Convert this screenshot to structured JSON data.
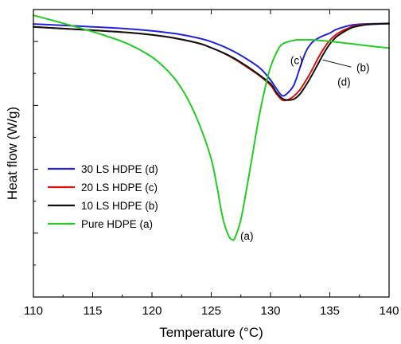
{
  "chart_data": {
    "type": "line",
    "xlabel": "Temperature (°C)",
    "ylabel": "Heat flow (W/g)",
    "xlim": [
      110,
      140
    ],
    "x_ticks": [
      "110",
      "115",
      "120",
      "125",
      "130",
      "135",
      "140"
    ],
    "x_tick_values": [
      110,
      115,
      120,
      125,
      130,
      135,
      140
    ],
    "ylim": [
      0,
      1
    ],
    "y_tick_labels_shown": false,
    "grid": false,
    "legend_position": "lower-left",
    "series": [
      {
        "name": "30 LS HDPE (d)",
        "color": "#2222dd",
        "x": [
          110,
          112,
          115,
          118,
          120,
          122,
          124,
          125,
          126,
          127,
          128,
          129,
          129.5,
          130,
          130.5,
          131,
          131.5,
          132,
          132.5,
          133,
          133.5,
          134,
          134.5,
          135,
          135.5,
          136,
          136.5,
          137,
          138,
          139,
          140
        ],
        "y": [
          0.95,
          0.946,
          0.94,
          0.933,
          0.926,
          0.916,
          0.9,
          0.888,
          0.872,
          0.852,
          0.828,
          0.8,
          0.78,
          0.755,
          0.725,
          0.7,
          0.712,
          0.74,
          0.8,
          0.855,
          0.885,
          0.9,
          0.91,
          0.918,
          0.93,
          0.937,
          0.943,
          0.947,
          0.95,
          0.951,
          0.952
        ]
      },
      {
        "name": "20 LS HDPE (c)",
        "color": "#dd1111",
        "x": [
          110,
          112,
          115,
          118,
          120,
          122,
          124,
          125,
          126,
          127,
          128,
          129,
          130,
          130.5,
          131,
          131.5,
          132,
          132.5,
          133,
          133.5,
          134,
          134.5,
          135,
          135.5,
          136,
          136.5,
          137,
          138,
          139,
          140
        ],
        "y": [
          0.94,
          0.935,
          0.928,
          0.92,
          0.912,
          0.9,
          0.882,
          0.867,
          0.849,
          0.827,
          0.8,
          0.772,
          0.737,
          0.707,
          0.685,
          0.687,
          0.7,
          0.722,
          0.754,
          0.79,
          0.83,
          0.865,
          0.893,
          0.912,
          0.925,
          0.934,
          0.942,
          0.948,
          0.95,
          0.951
        ]
      },
      {
        "name": "10 LS HDPE (b)",
        "color": "#111111",
        "x": [
          110,
          112,
          115,
          118,
          120,
          122,
          124,
          125,
          126,
          127,
          128,
          129,
          130,
          130.5,
          131,
          131.5,
          132,
          132.5,
          133,
          133.5,
          134,
          134.5,
          135,
          135.5,
          136,
          136.5,
          137,
          138,
          139,
          140
        ],
        "y": [
          0.94,
          0.935,
          0.928,
          0.92,
          0.912,
          0.9,
          0.882,
          0.867,
          0.85,
          0.829,
          0.803,
          0.774,
          0.742,
          0.712,
          0.69,
          0.685,
          0.689,
          0.707,
          0.737,
          0.772,
          0.81,
          0.848,
          0.88,
          0.903,
          0.918,
          0.93,
          0.939,
          0.947,
          0.95,
          0.951
        ]
      },
      {
        "name": "Pure HDPE (a)",
        "color": "#22cc22",
        "x": [
          110,
          112,
          114,
          116,
          118,
          120,
          121,
          122,
          123,
          124,
          125,
          125.5,
          126,
          126.5,
          126.8,
          127,
          127.5,
          128,
          128.5,
          129,
          129.5,
          130,
          130.5,
          131,
          132,
          133,
          134,
          136,
          138,
          140
        ],
        "y": [
          0.98,
          0.958,
          0.935,
          0.91,
          0.88,
          0.835,
          0.8,
          0.755,
          0.69,
          0.6,
          0.48,
          0.38,
          0.27,
          0.21,
          0.2,
          0.205,
          0.27,
          0.38,
          0.5,
          0.62,
          0.72,
          0.8,
          0.85,
          0.88,
          0.893,
          0.895,
          0.893,
          0.885,
          0.875,
          0.866
        ]
      }
    ],
    "annotations": [
      {
        "text": "(a)",
        "x": 128.0,
        "y": 0.2
      },
      {
        "text": "(c)",
        "x": 132.2,
        "y": 0.81
      },
      {
        "text": "(b)",
        "x": 137.8,
        "y": 0.785
      },
      {
        "text": "(d)",
        "x": 136.2,
        "y": 0.735
      }
    ]
  }
}
